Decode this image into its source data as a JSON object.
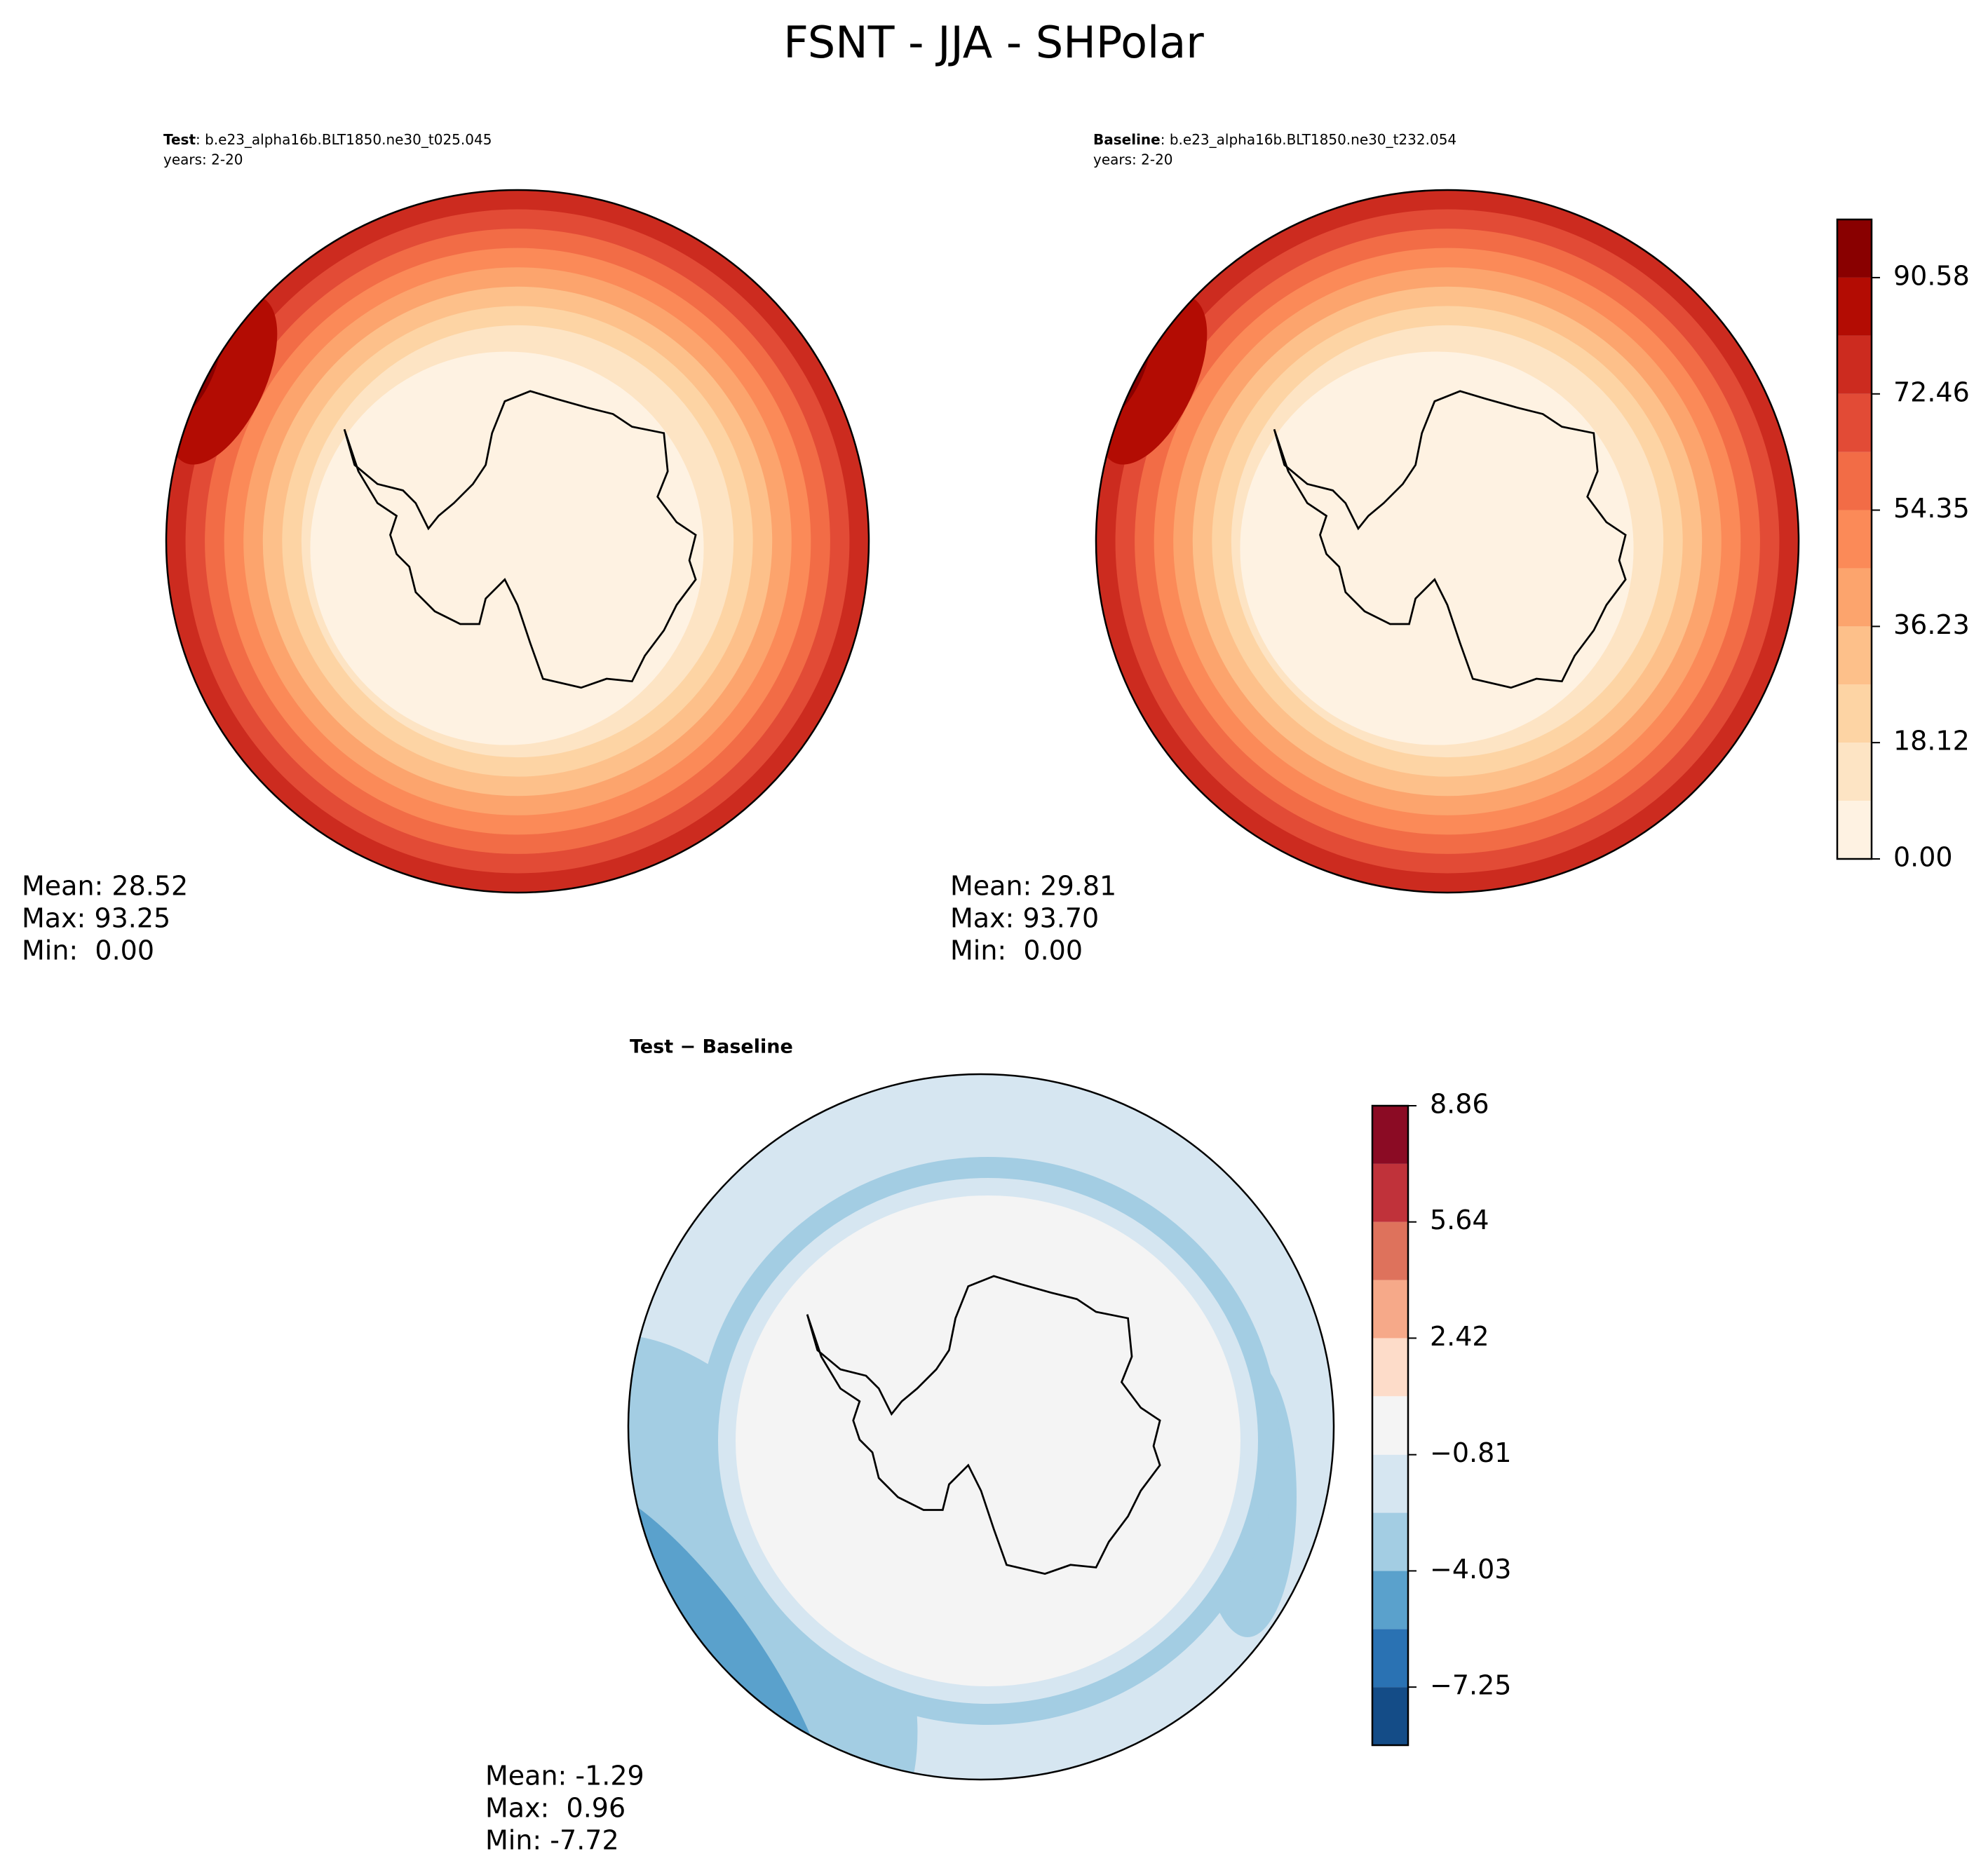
{
  "title": "FSNT - JJA - SHPolar",
  "chart_data": [
    {
      "type": "contour",
      "title": "Test",
      "subtitle": ": b.e23_alpha16b.BLT1850.ne30_t025.045",
      "years": "years: 2-20",
      "stats": [
        "Mean: 28.52",
        "Max: 93.25",
        "Min:  0.00"
      ]
    },
    {
      "type": "contour",
      "title": "Baseline",
      "subtitle": ": b.e23_alpha16b.BLT1850.ne30_t232.054",
      "years": "years: 2-20",
      "stats": [
        "Mean: 29.81",
        "Max: 93.70",
        "Min:  0.00"
      ],
      "colorbar": {
        "levels": [
          0,
          9.06,
          18.12,
          27.17,
          36.23,
          45.29,
          54.35,
          63.4,
          72.46,
          81.52,
          90.58,
          99.64
        ],
        "colors": [
          "#fef2e2",
          "#fde4c4",
          "#fdd4a4",
          "#fdc08a",
          "#fca46d",
          "#fb8a58",
          "#f26c46",
          "#e24b36",
          "#cc2b1f",
          "#b30c03",
          "#890000"
        ],
        "ticks": [
          {
            "value": 0,
            "label": "0.00"
          },
          18.12,
          36.23,
          54.35,
          72.46,
          90.58
        ]
      }
    },
    {
      "type": "contour",
      "title": "Test − Baseline",
      "stats": [
        "Mean: -1.29",
        "Max:  0.96",
        "Min: -7.72"
      ],
      "colorbar": {
        "levels": [
          -8.86,
          -7.25,
          -5.64,
          -4.03,
          -2.42,
          -0.81,
          0.81,
          2.42,
          4.03,
          5.64,
          7.25,
          8.86
        ],
        "colors": [
          "#144c87",
          "#2a72b3",
          "#5aa1cc",
          "#a3cde3",
          "#d6e6f1",
          "#f4f4f4",
          "#fddcc9",
          "#f6a989",
          "#de725c",
          "#c0323a",
          "#8b0b24"
        ],
        "ticks": [
          {
            "value": -7.25,
            "label": "−7.25"
          },
          {
            "value": -4.03,
            "label": "−4.03"
          },
          {
            "value": -0.81,
            "label": "−0.81"
          },
          2.42,
          5.64,
          8.86
        ]
      }
    }
  ]
}
